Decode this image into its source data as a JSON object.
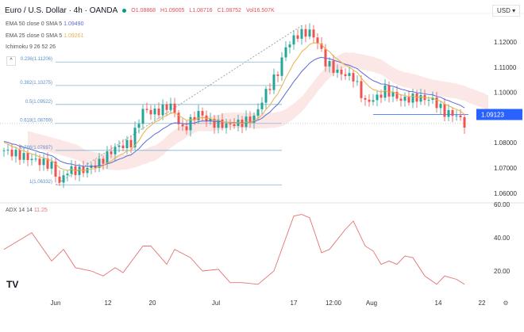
{
  "header": {
    "title": "Euro / U.S. Dollar · 4h · OANDA",
    "open": "O1.08868",
    "high": "H1.09005",
    "low": "L1.08716",
    "close": "C1.08752",
    "volume": "Vol16.507K"
  },
  "legend": {
    "ema50": "EMA 50 close 0 SMA 5",
    "ema50_val": "1.09490",
    "ema25": "EMA 25 close 0 SMA 5",
    "ema25_val": "1.09261",
    "ichimoku": "Ichimoku 9 26 52 26",
    "adx": "ADX 14 14",
    "adx_val": "11.25"
  },
  "currency": "USD",
  "collapse_icon": "chevron-up-icon",
  "colors": {
    "up": "#26a69a",
    "down": "#ef5350",
    "ema50": "#5b6bd6",
    "ema25": "#e8b14a",
    "adx": "#e57373",
    "price_label": "#2962ff"
  },
  "chart_data": [
    {
      "type": "candlestick",
      "title": "Euro / U.S. Dollar 4h",
      "ylim": [
        1.058,
        1.128
      ],
      "price_ticks": [
        "1.12000",
        "1.11000",
        "1.10000",
        "1.08000",
        "1.07000",
        "1.06000"
      ],
      "current_price": "1.09123",
      "x_ticks": [
        "Jun",
        "12",
        "20",
        "Jul",
        "17",
        "12:00",
        "Aug",
        "14",
        "22"
      ],
      "fib_levels": [
        {
          "label": "0.236(1.11206)",
          "value": 1.11206
        },
        {
          "label": "0.382(1.10275)",
          "value": 1.10275
        },
        {
          "label": "0.5(1.09522)",
          "value": 1.09522
        },
        {
          "label": "0.618(1.08769)",
          "value": 1.08769
        },
        {
          "label": "0.786(1.07697)",
          "value": 1.07697
        },
        {
          "label": "1(1.06332)",
          "value": 1.06332
        }
      ],
      "close_path": [
        [
          0,
          1.077
        ],
        [
          6,
          1.074
        ],
        [
          12,
          1.071
        ],
        [
          14,
          1.064
        ],
        [
          16,
          1.069
        ],
        [
          20,
          1.069
        ],
        [
          24,
          1.072
        ],
        [
          28,
          1.078
        ],
        [
          32,
          1.08
        ],
        [
          35,
          1.093
        ],
        [
          38,
          1.092
        ],
        [
          42,
          1.095
        ],
        [
          45,
          1.085
        ],
        [
          49,
          1.092
        ],
        [
          52,
          1.088
        ],
        [
          56,
          1.087
        ],
        [
          60,
          1.088
        ],
        [
          63,
          1.09
        ],
        [
          66,
          1.1
        ],
        [
          69,
          1.108
        ],
        [
          71,
          1.118
        ],
        [
          74,
          1.123
        ],
        [
          77,
          1.124
        ],
        [
          79,
          1.12
        ],
        [
          81,
          1.112
        ],
        [
          84,
          1.108
        ],
        [
          88,
          1.106
        ],
        [
          91,
          1.096
        ],
        [
          94,
          1.098
        ],
        [
          96,
          1.101
        ],
        [
          100,
          1.097
        ],
        [
          104,
          1.098
        ],
        [
          108,
          1.097
        ],
        [
          111,
          1.092
        ],
        [
          114,
          1.091
        ],
        [
          116,
          1.0875
        ]
      ]
    },
    {
      "type": "line",
      "title": "ADX 14 14",
      "ylim": [
        5,
        60
      ],
      "y_ticks": [
        "60.00",
        "40.00",
        "20.00"
      ],
      "values": [
        [
          0,
          33
        ],
        [
          7,
          43
        ],
        [
          12,
          26
        ],
        [
          15,
          33
        ],
        [
          18,
          22
        ],
        [
          22,
          20
        ],
        [
          25,
          17
        ],
        [
          28,
          22
        ],
        [
          30,
          19
        ],
        [
          35,
          35
        ],
        [
          37,
          35
        ],
        [
          41,
          24
        ],
        [
          43,
          33
        ],
        [
          47,
          28
        ],
        [
          50,
          20
        ],
        [
          54,
          21
        ],
        [
          57,
          13
        ],
        [
          60,
          13
        ],
        [
          64,
          12
        ],
        [
          68,
          20
        ],
        [
          73,
          53
        ],
        [
          75,
          54
        ],
        [
          77,
          52
        ],
        [
          80,
          31
        ],
        [
          82,
          33
        ],
        [
          86,
          45
        ],
        [
          88,
          50
        ],
        [
          91,
          35
        ],
        [
          93,
          32
        ],
        [
          95,
          24
        ],
        [
          97,
          26
        ],
        [
          99,
          24
        ],
        [
          101,
          29
        ],
        [
          103,
          28
        ],
        [
          106,
          17
        ],
        [
          109,
          12
        ],
        [
          111,
          17
        ],
        [
          114,
          15
        ],
        [
          116,
          12
        ]
      ]
    }
  ]
}
